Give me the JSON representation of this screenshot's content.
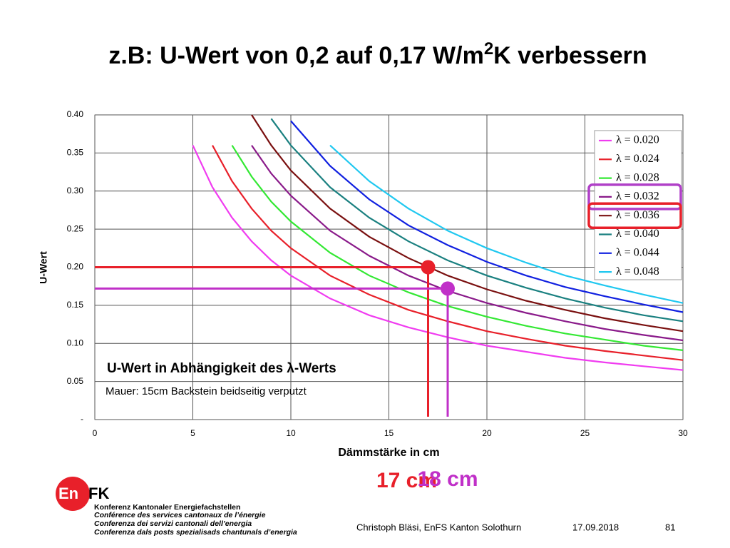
{
  "slide": {
    "title": {
      "before": "z.B: U-Wert von 0,2 auf 0,17 W/m",
      "sup": "2",
      "after": "K verbessern"
    },
    "logo": {
      "left": "En",
      "right": "FK"
    },
    "org_lines": [
      "Konferenz Kantonaler Energiefachstellen",
      "Conférence des services cantonaux de l’énergie",
      "Conferenza dei servizi cantonali dell’energia",
      "Conferenza dals posts spezialisads chantunals d’energia"
    ],
    "author": "Christoph Bläsi, EnFS Kanton Solothurn",
    "date": "17.09.2018",
    "page": "81"
  },
  "chart_data": {
    "type": "line",
    "x_label": "Dämmstärke in cm",
    "y_label": "U-Wert",
    "annotations": [
      "U-Wert in Abhängigkeit des λ-Werts",
      "Mauer: 15cm Backstein beidseitig verputzt"
    ],
    "x": [
      4,
      5,
      6,
      7,
      8,
      9,
      10,
      12,
      14,
      16,
      18,
      20,
      22,
      24,
      26,
      28,
      30
    ],
    "series": [
      {
        "name": "λ = 0.020",
        "color": "#f03cf0",
        "values": [
          null,
          0.36,
          0.305,
          0.265,
          0.234,
          0.209,
          0.189,
          0.159,
          0.137,
          0.121,
          0.108,
          0.097,
          0.089,
          0.081,
          0.075,
          0.07,
          0.065
        ]
      },
      {
        "name": "λ = 0.024",
        "color": "#e8202a",
        "values": [
          null,
          null,
          0.36,
          0.313,
          0.277,
          0.248,
          0.225,
          0.189,
          0.164,
          0.144,
          0.129,
          0.116,
          0.106,
          0.097,
          0.09,
          0.084,
          0.078
        ]
      },
      {
        "name": "λ = 0.028",
        "color": "#33e833",
        "values": [
          null,
          null,
          null,
          0.36,
          0.319,
          0.286,
          0.26,
          0.219,
          0.189,
          0.167,
          0.149,
          0.135,
          0.123,
          0.113,
          0.105,
          0.097,
          0.091
        ]
      },
      {
        "name": "λ = 0.032",
        "color": "#8a1a8a",
        "highlight": "#b040c8",
        "values": [
          null,
          null,
          null,
          null,
          0.36,
          0.323,
          0.294,
          0.248,
          0.215,
          0.189,
          0.169,
          0.153,
          0.14,
          0.129,
          0.119,
          0.111,
          0.104
        ]
      },
      {
        "name": "λ = 0.036",
        "color": "#7a1010",
        "highlight": "#e8202a",
        "values": [
          null,
          null,
          null,
          null,
          0.4,
          0.36,
          0.327,
          0.277,
          0.24,
          0.212,
          0.189,
          0.171,
          0.156,
          0.144,
          0.133,
          0.124,
          0.116
        ]
      },
      {
        "name": "λ = 0.040",
        "color": "#1a8080",
        "values": [
          null,
          null,
          null,
          null,
          null,
          0.395,
          0.36,
          0.305,
          0.265,
          0.234,
          0.209,
          0.189,
          0.173,
          0.159,
          0.147,
          0.137,
          0.129
        ]
      },
      {
        "name": "λ = 0.044",
        "color": "#1020e0",
        "values": [
          null,
          null,
          null,
          null,
          null,
          null,
          0.392,
          0.333,
          0.289,
          0.255,
          0.229,
          0.207,
          0.189,
          0.174,
          0.162,
          0.151,
          0.141
        ]
      },
      {
        "name": "λ = 0.048",
        "color": "#20c8f0",
        "values": [
          null,
          null,
          null,
          null,
          null,
          null,
          null,
          0.36,
          0.313,
          0.277,
          0.248,
          0.225,
          0.206,
          0.189,
          0.176,
          0.164,
          0.153
        ]
      }
    ],
    "markers": [
      {
        "x": 17,
        "y": 0.2,
        "label": "17 cm",
        "color": "#e8202a"
      },
      {
        "x": 18,
        "y": 0.172,
        "label": "18 cm",
        "color": "#c030c8"
      }
    ],
    "xlim": [
      0,
      30
    ],
    "xticks": [
      0,
      5,
      10,
      15,
      20,
      25,
      30
    ],
    "ylim": [
      0,
      0.4
    ],
    "yticks": [
      {
        "value": 0,
        "label": "-"
      },
      0.05,
      {
        "value": 0.1,
        "label": "0.10"
      },
      0.15,
      {
        "value": 0.2,
        "label": "0.20"
      },
      0.25,
      {
        "value": 0.3,
        "label": "0.30"
      },
      0.35,
      {
        "value": 0.4,
        "label": "0.40"
      }
    ],
    "grid": true,
    "legend": "top-right"
  }
}
